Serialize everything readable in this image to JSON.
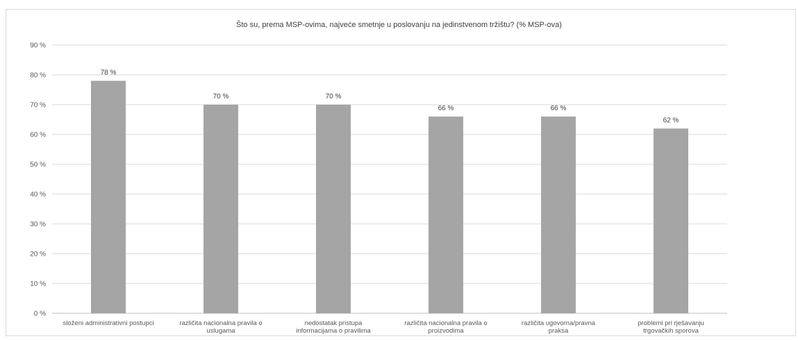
{
  "chart_data": {
    "type": "bar",
    "title": "Što su, prema MSP-ovima, najveće smetnje u poslovanju na jedinstvenom tržištu? (% MSP-ova)",
    "categories": [
      [
        "složeni administrativni postupci"
      ],
      [
        "različita nacionalna pravila o",
        "uslugama"
      ],
      [
        "nedostatak pristupa",
        "informacijama o pravilima"
      ],
      [
        "različita nacionalna pravila o",
        "proizvodima"
      ],
      [
        "različita ugovorna/pravna",
        "praksa"
      ],
      [
        "problemi pri rješavanju",
        "trgovačkih sporova"
      ]
    ],
    "values": [
      78,
      70,
      70,
      66,
      66,
      62
    ],
    "data_labels": [
      "78 %",
      "70 %",
      "70 %",
      "66 %",
      "66 %",
      "62 %"
    ],
    "ylim": [
      0,
      90
    ],
    "yticks": [
      0,
      10,
      20,
      30,
      40,
      50,
      60,
      70,
      80,
      90
    ],
    "ytick_labels": [
      "0 %",
      "10 %",
      "20 %",
      "30 %",
      "40 %",
      "50 %",
      "60 %",
      "70 %",
      "80 %",
      "90 %"
    ],
    "xlabel": "",
    "ylabel": "",
    "grid": true,
    "legend": "none",
    "colors": {
      "bar": "#a5a5a5",
      "grid": "#d9d9d9",
      "axis": "#bfbfbf"
    }
  }
}
